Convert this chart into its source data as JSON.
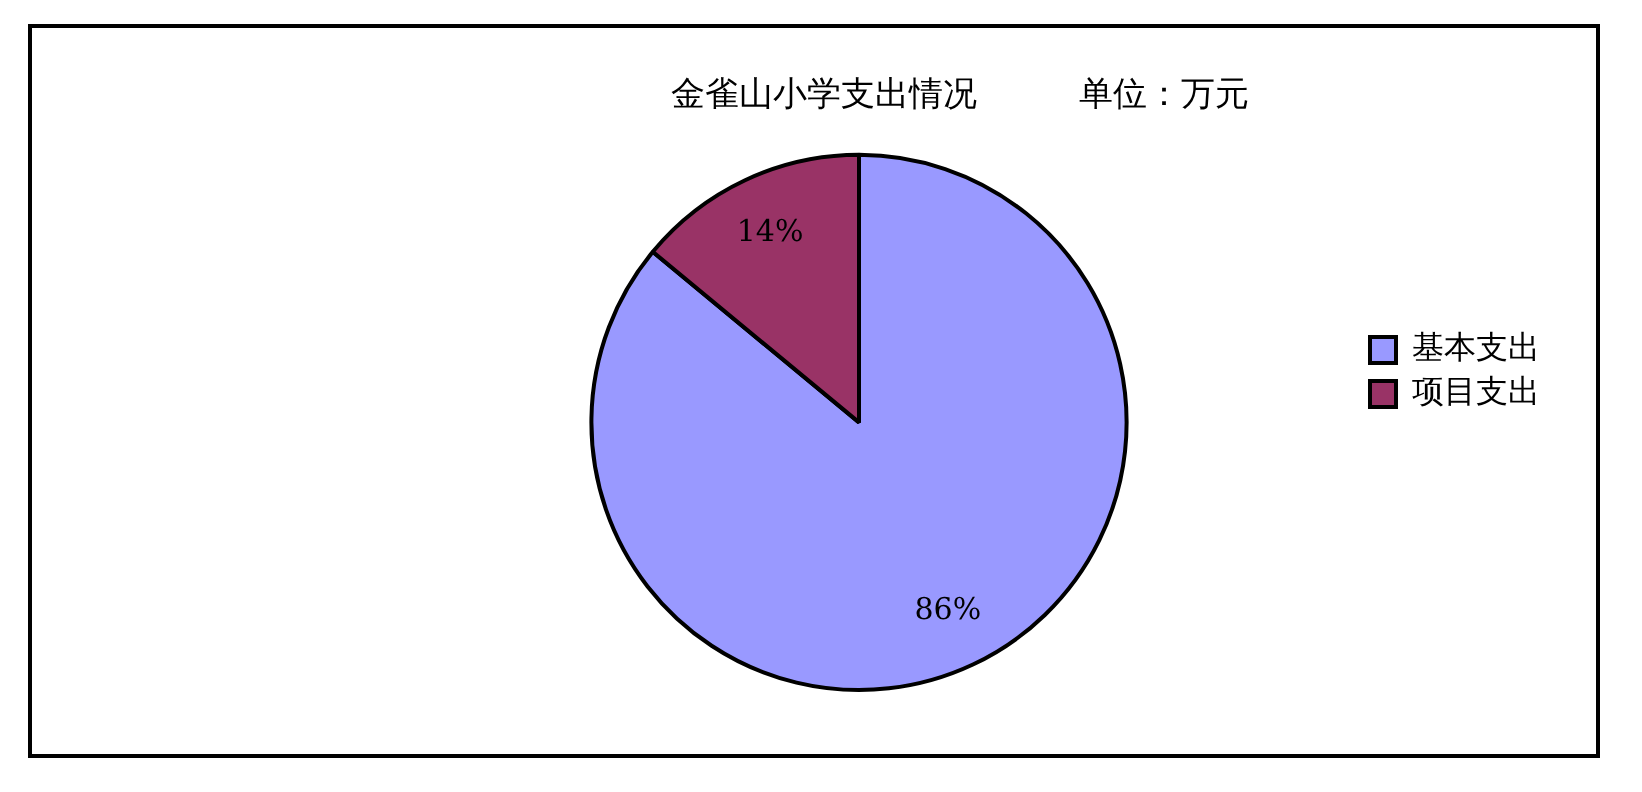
{
  "chart_data": {
    "type": "pie",
    "title": "金雀山小学支出情况　　　单位：万元",
    "categories": [
      "基本支出",
      "项目支出"
    ],
    "values": [
      86,
      14
    ],
    "colors": [
      "#9999ff",
      "#993366"
    ],
    "value_labels": [
      "86%",
      "14%"
    ],
    "legend": "right"
  }
}
